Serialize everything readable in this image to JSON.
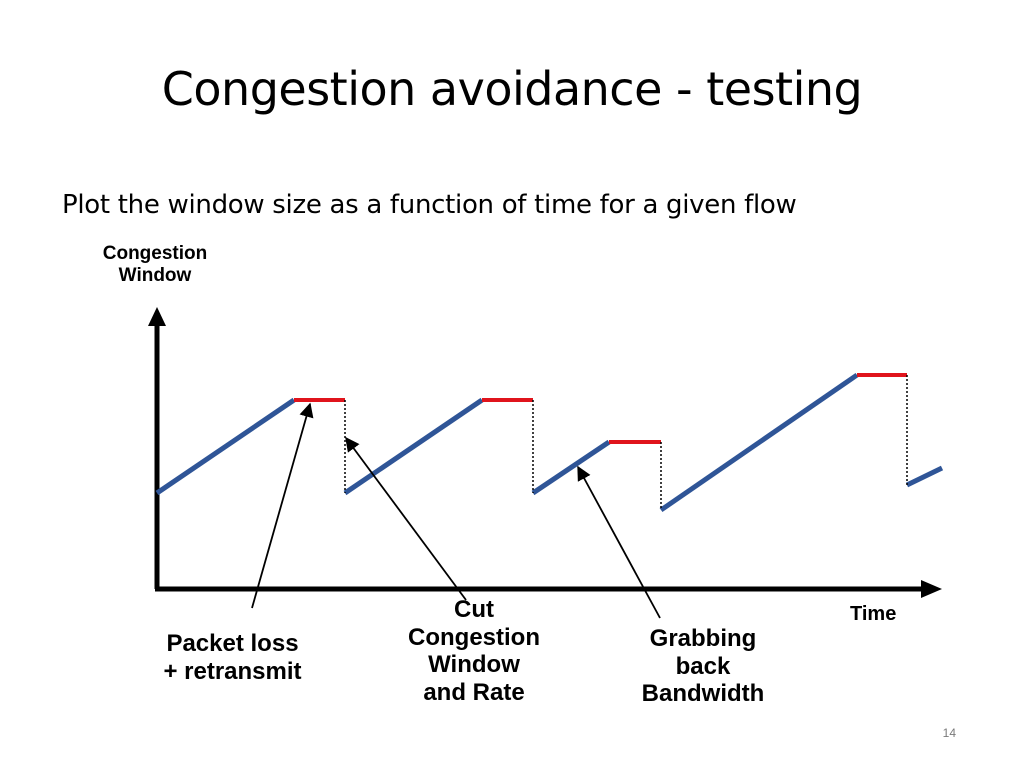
{
  "slide": {
    "title": "Congestion avoidance - testing",
    "subtitle": "Plot the window size as a function of time for a given flow",
    "page_number": "14"
  },
  "axes": {
    "y_label_lines": [
      "Congestion",
      "Window"
    ],
    "x_label": "Time"
  },
  "annotations": {
    "packet_loss_lines": [
      "Packet loss",
      "+ retransmit"
    ],
    "cut_lines": [
      "Cut",
      "Congestion",
      "Window",
      "and Rate"
    ],
    "grabbing_lines": [
      "Grabbing",
      "back",
      "Bandwidth"
    ]
  },
  "colors": {
    "growth_line": "#2f5597",
    "loss_plateau": "#e0141c",
    "axis": "#000000"
  }
}
